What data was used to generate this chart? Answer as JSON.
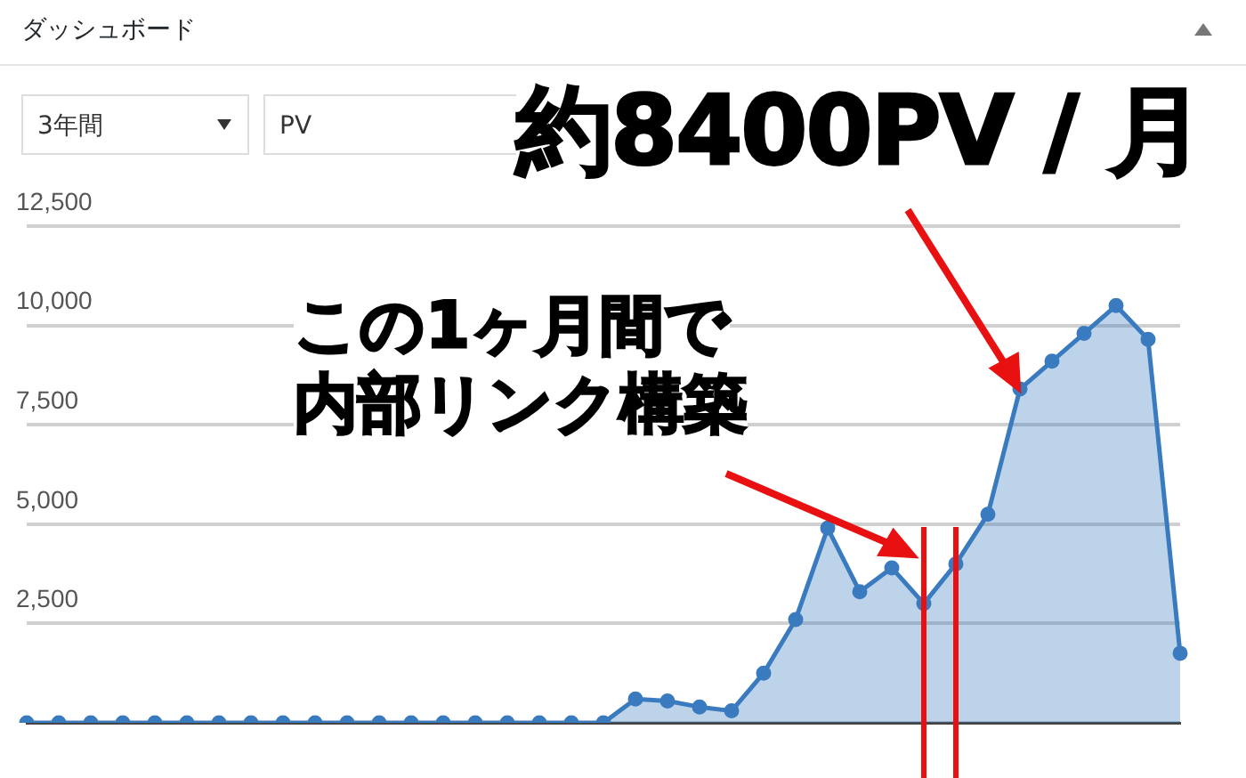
{
  "chart_data": {
    "type": "area",
    "title": "ダッシュボード",
    "categories": [
      null,
      null,
      null,
      null,
      null,
      null,
      null,
      null,
      null,
      null,
      null,
      null,
      null,
      null,
      null,
      null,
      null,
      null,
      null,
      null,
      null,
      null,
      null,
      null,
      null,
      null,
      null,
      null,
      null,
      null,
      null,
      null,
      null,
      null,
      null,
      null,
      null
    ],
    "series": [
      {
        "color": "#3a7bbf",
        "values": [
          0,
          0,
          0,
          0,
          0,
          0,
          0,
          0,
          0,
          0,
          0,
          0,
          0,
          0,
          0,
          0,
          0,
          0,
          0,
          600,
          550,
          400,
          300,
          1250,
          2600,
          4900,
          3300,
          3900,
          3000,
          4000,
          5250,
          8400,
          9100,
          9800,
          10500,
          9650,
          1750
        ]
      }
    ],
    "ylim": [
      0,
      12500
    ],
    "yticks": [
      {
        "value": 0,
        "label": null
      },
      {
        "value": 2500,
        "label": "2,500"
      },
      {
        "value": 5000,
        "label": "5,000"
      },
      {
        "value": 7500,
        "label": "7,500"
      },
      {
        "value": 10000,
        "label": "10,000"
      },
      {
        "value": 12500,
        "label": "12,500"
      }
    ],
    "grid": "y",
    "legend": false,
    "marker": "circle",
    "tick_labels": "y",
    "annotations": [
      "3年間",
      "PV",
      "約8400PV / 月",
      "この1ヶ月間で",
      "内部リンク構築"
    ]
  }
}
